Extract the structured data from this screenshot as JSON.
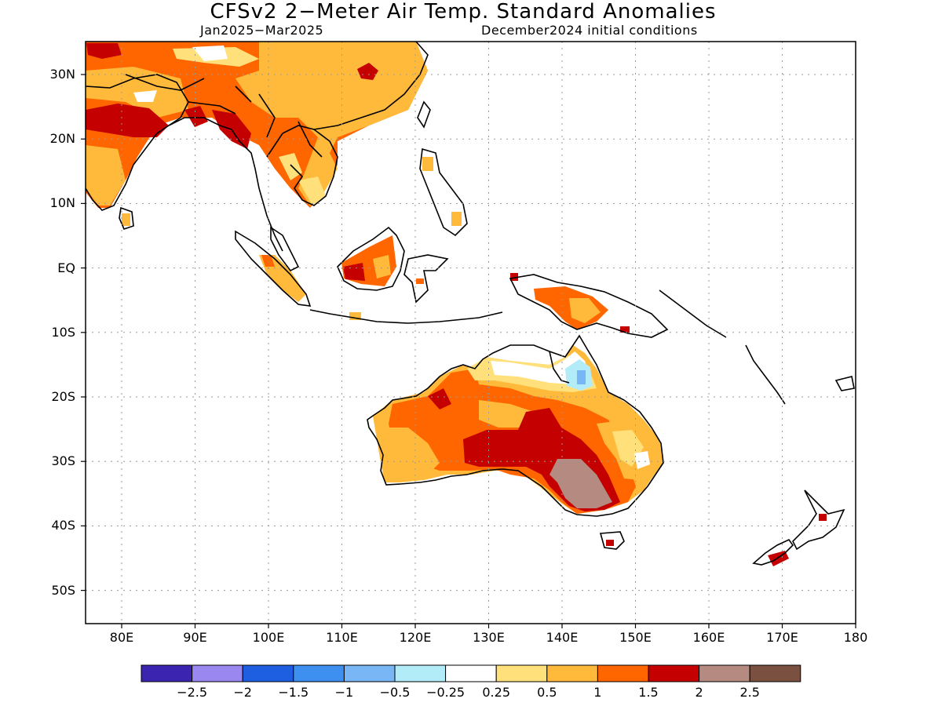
{
  "title": "CFSv2 2−Meter Air Temp. Standard Anomalies",
  "subtitle_left": "Jan2025−Mar2025",
  "subtitle_right": "December2024 initial conditions",
  "lat_labels": [
    "30N",
    "20N",
    "10N",
    "EQ",
    "10S",
    "20S",
    "30S",
    "40S",
    "50S"
  ],
  "lon_labels": [
    "80E",
    "90E",
    "100E",
    "110E",
    "120E",
    "130E",
    "140E",
    "150E",
    "160E",
    "170E",
    "180"
  ],
  "colorbar": {
    "colors": [
      "#3b24b0",
      "#9a88f0",
      "#1d5fe0",
      "#3e90f0",
      "#78b6f5",
      "#b2ecf8",
      "#ffffff",
      "#ffe07a",
      "#ffba3c",
      "#ff6600",
      "#c40000",
      "#b58a80",
      "#7a5040"
    ],
    "labels": [
      "−2.5",
      "−2",
      "−1.5",
      "−1",
      "−0.5",
      "−0.25",
      "0.25",
      "0.5",
      "1",
      "1.5",
      "2",
      "2.5"
    ]
  }
}
